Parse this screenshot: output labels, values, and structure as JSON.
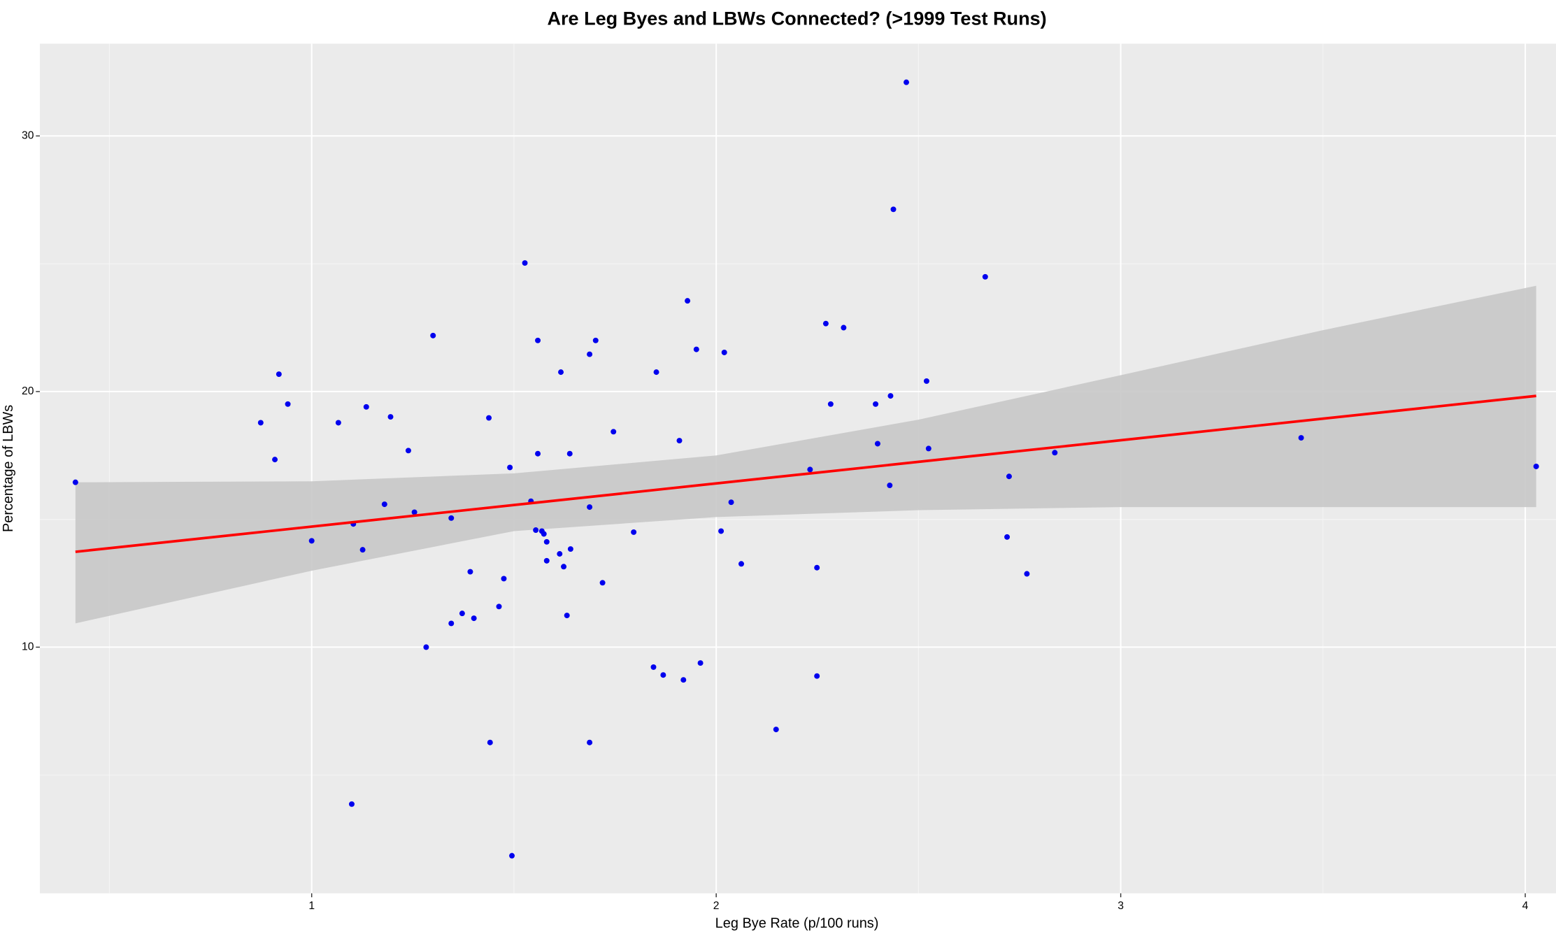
{
  "chart_data": {
    "type": "scatter",
    "title": "Are Leg Byes and LBWs Connected? (>1999 Test Runs)",
    "x_label": "Leg Bye Rate (p/100 runs)",
    "y_label": "Percentage of LBWs",
    "xlim": [
      0.328,
      4.076
    ],
    "ylim": [
      0.37,
      33.61
    ],
    "xticks": [
      1,
      2,
      3,
      4
    ],
    "yticks": [
      10,
      20,
      30
    ],
    "x_minor_grid": [
      0.5,
      1.5,
      2.5,
      3.5
    ],
    "y_minor_grid": [
      5,
      15,
      25
    ],
    "grid": true,
    "color": "#0000ee",
    "x": [
      0.416,
      0.874,
      0.919,
      0.909,
      0.941,
      1.0,
      1.066,
      1.099,
      1.103,
      1.126,
      1.135,
      1.18,
      1.195,
      1.239,
      1.254,
      1.283,
      1.3,
      1.345,
      1.345,
      1.372,
      1.392,
      1.401,
      1.438,
      1.441,
      1.463,
      1.475,
      1.49,
      1.495,
      1.527,
      1.542,
      1.554,
      1.559,
      1.559,
      1.569,
      1.574,
      1.581,
      1.581,
      1.613,
      1.616,
      1.623,
      1.631,
      1.638,
      1.64,
      1.687,
      1.687,
      1.687,
      1.702,
      1.719,
      1.746,
      1.796,
      1.845,
      1.852,
      1.869,
      1.909,
      1.919,
      1.929,
      1.951,
      1.961,
      2.012,
      2.02,
      2.037,
      2.062,
      2.148,
      2.232,
      2.249,
      2.249,
      2.271,
      2.283,
      2.315,
      2.394,
      2.399,
      2.431,
      2.429,
      2.438,
      2.47,
      2.52,
      2.525,
      2.665,
      2.719,
      2.724,
      2.768,
      2.837,
      3.446,
      4.027
    ],
    "y": [
      16.45,
      18.78,
      20.68,
      17.34,
      19.51,
      14.16,
      18.78,
      3.86,
      14.82,
      13.81,
      19.4,
      15.59,
      19.01,
      17.69,
      15.28,
      10.0,
      22.19,
      15.05,
      10.93,
      11.32,
      12.95,
      11.13,
      18.97,
      6.27,
      11.59,
      12.68,
      17.03,
      1.84,
      25.03,
      15.71,
      14.58,
      22.0,
      17.57,
      14.54,
      14.43,
      14.12,
      13.38,
      13.65,
      20.76,
      13.15,
      11.24,
      17.57,
      13.84,
      21.46,
      15.48,
      6.27,
      22.0,
      12.52,
      18.43,
      14.5,
      9.22,
      20.76,
      8.91,
      18.08,
      8.72,
      23.55,
      21.65,
      9.38,
      14.54,
      21.53,
      15.67,
      13.26,
      6.78,
      16.95,
      13.11,
      8.87,
      22.66,
      19.51,
      22.5,
      19.51,
      17.96,
      19.83,
      16.33,
      27.13,
      32.1,
      20.41,
      17.77,
      24.49,
      14.31,
      16.68,
      12.87,
      17.61,
      18.19,
      17.07
    ],
    "fit": {
      "color": "#ff0000",
      "x": [
        0.416,
        4.027
      ],
      "y": [
        13.73,
        19.83
      ]
    },
    "ribbon": {
      "color": "#c8c8c8",
      "x": [
        0.416,
        1.0,
        1.5,
        2.0,
        2.5,
        3.0,
        3.5,
        4.027
      ],
      "upper": [
        16.45,
        16.49,
        16.8,
        17.5,
        18.9,
        20.64,
        22.4,
        24.14
      ],
      "lower": [
        10.93,
        12.99,
        14.54,
        15.09,
        15.36,
        15.48,
        15.48,
        15.48
      ]
    }
  }
}
